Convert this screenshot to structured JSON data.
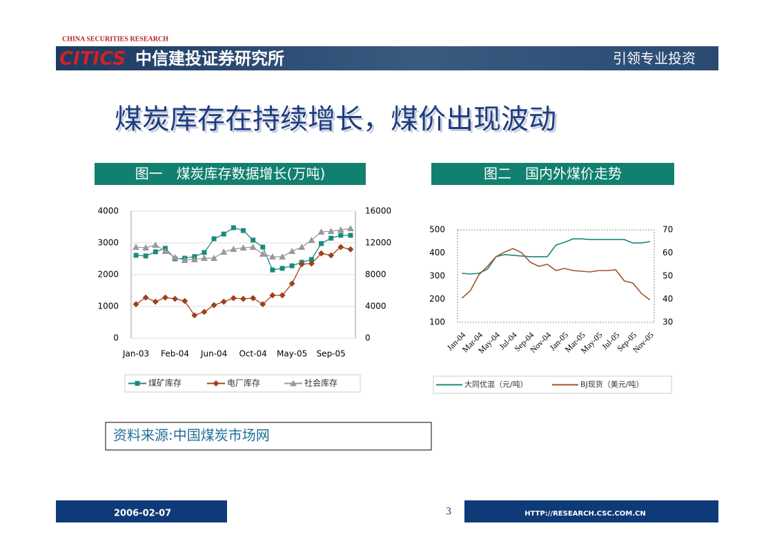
{
  "header": {
    "brand_en": "CHINA SECURITIES RESEARCH",
    "logo": "CITICS",
    "brand_cn": "中信建投证券研究所",
    "slogan": "引领专业投资"
  },
  "title": "煤炭库存在持续增长，煤价出现波动",
  "chart_data": [
    {
      "type": "line",
      "title": "图一　煤炭库存数据增长(万吨)",
      "categories": [
        "Jan-03",
        null,
        null,
        null,
        "Feb-04",
        null,
        null,
        null,
        "Jun-04",
        null,
        null,
        null,
        "Oct-04",
        null,
        null,
        null,
        "May-05",
        null,
        null,
        null,
        "Sep-05",
        null,
        null
      ],
      "ylim": [
        0,
        4000
      ],
      "yticks": [
        0,
        1000,
        2000,
        3000,
        4000
      ],
      "y2lim": [
        0,
        16000
      ],
      "y2ticks": [
        0,
        4000,
        8000,
        12000,
        16000
      ],
      "grid": true,
      "legend": "bottom",
      "series": [
        {
          "name": "煤矿库存",
          "color": "#1a8a80",
          "marker": "square",
          "values": [
            2610,
            2590,
            2720,
            2830,
            2500,
            2520,
            2570,
            2700,
            3130,
            3280,
            3480,
            3390,
            3090,
            2870,
            2150,
            2200,
            2280,
            2390,
            2480,
            2980,
            3150,
            3240,
            3240
          ]
        },
        {
          "name": "电厂库存",
          "color": "#a0401a",
          "marker": "diamond",
          "values": [
            1070,
            1280,
            1150,
            1280,
            1240,
            1170,
            720,
            830,
            1040,
            1150,
            1260,
            1240,
            1260,
            1070,
            1350,
            1350,
            1720,
            2330,
            2350,
            2670,
            2610,
            2870,
            2800
          ]
        },
        {
          "name": "社会库存",
          "color": "#999999",
          "marker": "triangle",
          "axis": "y2",
          "values": [
            11480,
            11390,
            11740,
            10960,
            10170,
            9830,
            9910,
            10090,
            10090,
            10870,
            11220,
            11390,
            11480,
            10610,
            10260,
            10260,
            10960,
            11480,
            12350,
            13390,
            13480,
            13650,
            13830
          ]
        }
      ]
    },
    {
      "type": "line",
      "title": "图二　国内外煤价走势",
      "categories": [
        "Jan-04",
        null,
        "Mar-04",
        null,
        "May-04",
        null,
        "Jul-04",
        null,
        "Sep-04",
        null,
        "Nov-04",
        null,
        "Jan-05",
        null,
        "Mar-05",
        null,
        "May-05",
        null,
        "Jul-05",
        null,
        "Sep-05",
        null,
        "Nov-05"
      ],
      "ylim": [
        100,
        500
      ],
      "yticks": [
        100,
        200,
        300,
        400,
        500
      ],
      "y2lim": [
        30,
        70
      ],
      "y2ticks": [
        30,
        40,
        50,
        60,
        70
      ],
      "grid": false,
      "legend": "bottom",
      "series": [
        {
          "name": "大同优混（元/吨）",
          "color": "#17877b",
          "values": [
            312,
            309,
            312,
            330,
            384,
            393,
            390,
            387,
            384,
            384,
            384,
            434,
            446,
            461,
            461,
            458,
            458,
            458,
            458,
            458,
            443,
            443,
            449
          ]
        },
        {
          "name": "BJ现货（美元/吨）",
          "color": "#a0522d",
          "axis": "y2",
          "values": [
            40.4,
            43.7,
            50.6,
            54.2,
            58.4,
            60.4,
            61.9,
            60.1,
            56.0,
            54.2,
            55.1,
            52.4,
            53.3,
            52.4,
            52.1,
            51.8,
            52.4,
            52.4,
            52.7,
            47.9,
            47.0,
            42.5,
            39.6
          ]
        }
      ]
    }
  ],
  "source": "资料来源:中国煤炭市场网",
  "footer": {
    "date": "2006-02-07",
    "page": "3",
    "url": "HTTP://RESEARCH.CSC.COM.CN"
  }
}
